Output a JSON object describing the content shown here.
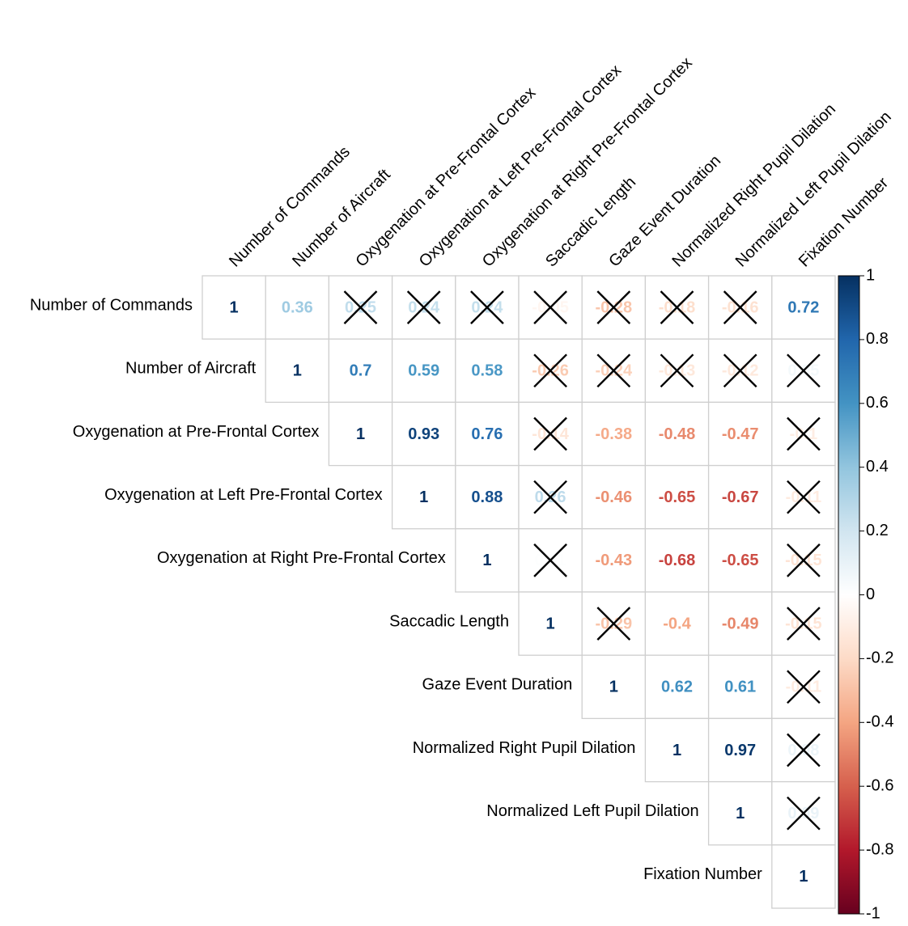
{
  "chart_data": {
    "type": "heatmap",
    "variables": [
      "Number of Commands",
      "Number of Aircraft",
      "Oxygenation at Pre-Frontal Cortex",
      "Oxygenation at Left Pre-Frontal Cortex",
      "Oxygenation at Right Pre-Frontal Cortex",
      "Saccadic Length",
      "Gaze Event Duration",
      "Normalized Right Pupil Dilation",
      "Normalized Left Pupil Dilation",
      "Fixation Number"
    ],
    "matrix_upper": [
      [
        1,
        0.36,
        0.25,
        0.24,
        0.24,
        -0.05,
        -0.28,
        -0.18,
        -0.16,
        0.72
      ],
      [
        null,
        1,
        0.7,
        0.59,
        0.58,
        -0.26,
        -0.24,
        -0.13,
        -0.12,
        0.05
      ],
      [
        null,
        null,
        1,
        0.93,
        0.76,
        -0.14,
        -0.38,
        -0.48,
        -0.47,
        -0.1
      ],
      [
        null,
        null,
        null,
        1,
        0.88,
        0.26,
        -0.46,
        -0.65,
        -0.67,
        -0.11
      ],
      [
        null,
        null,
        null,
        null,
        1,
        0.01,
        -0.43,
        -0.68,
        -0.65,
        -0.15
      ],
      [
        null,
        null,
        null,
        null,
        null,
        1,
        -0.29,
        -0.4,
        -0.49,
        -0.15
      ],
      [
        null,
        null,
        null,
        null,
        null,
        null,
        1,
        0.62,
        0.61,
        -0.11
      ],
      [
        null,
        null,
        null,
        null,
        null,
        null,
        null,
        1,
        0.97,
        0.08
      ],
      [
        null,
        null,
        null,
        null,
        null,
        null,
        null,
        null,
        1,
        0.09
      ],
      [
        null,
        null,
        null,
        null,
        null,
        null,
        null,
        null,
        null,
        1
      ]
    ],
    "insignificant_crossed": [
      [
        0,
        2
      ],
      [
        0,
        3
      ],
      [
        0,
        4
      ],
      [
        0,
        5
      ],
      [
        0,
        6
      ],
      [
        0,
        7
      ],
      [
        0,
        8
      ],
      [
        1,
        5
      ],
      [
        1,
        6
      ],
      [
        1,
        7
      ],
      [
        1,
        8
      ],
      [
        1,
        9
      ],
      [
        2,
        5
      ],
      [
        2,
        9
      ],
      [
        3,
        5
      ],
      [
        3,
        9
      ],
      [
        4,
        5
      ],
      [
        4,
        9
      ],
      [
        5,
        6
      ],
      [
        5,
        9
      ],
      [
        6,
        9
      ],
      [
        7,
        9
      ],
      [
        8,
        9
      ]
    ],
    "colorbar": {
      "range": [
        -1,
        1
      ],
      "ticks": [
        "1",
        "0.8",
        "0.6",
        "0.4",
        "0.2",
        "0",
        "-0.2",
        "-0.4",
        "-0.6",
        "-0.8",
        "-1"
      ]
    },
    "colors": {
      "neg_dark": "#67001F",
      "neg_mid": "#B2182B",
      "neg_light": "#F4A582",
      "neutral": "#FFFFFF",
      "pos_light": "#92C5DE",
      "pos_mid": "#2166AC",
      "pos_dark": "#053061"
    }
  }
}
